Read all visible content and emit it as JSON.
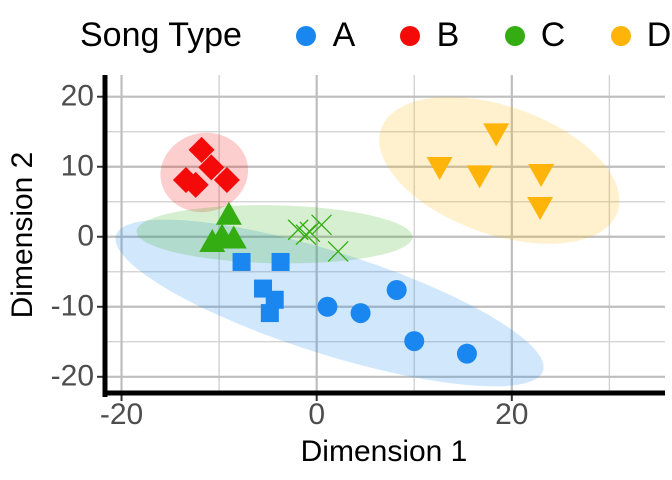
{
  "chart_data": {
    "type": "scatter",
    "x_label": "Dimension 1",
    "y_label": "Dimension 2",
    "legend_title": "Song Type",
    "legend_position": "top",
    "xlim": [
      -21.9,
      35.7
    ],
    "ylim": [
      -22.6,
      23.1
    ],
    "xticks": [
      -20,
      0,
      20
    ],
    "yticks": [
      -20,
      -10,
      0,
      10,
      20
    ],
    "x_minor_grid": [
      -10,
      10,
      30
    ],
    "y_minor_grid": [
      -15,
      -5,
      5,
      15
    ],
    "grid": true,
    "ellipses": true,
    "series": [
      {
        "name": "A",
        "color": "#1a87f0",
        "x": [
          -7.7,
          -3.7,
          -5.5,
          -4.3,
          -4.8,
          1.1,
          4.5,
          8.2,
          10.0,
          15.4
        ],
        "values": [
          -3.6,
          -3.6,
          -7.4,
          -9.0,
          -10.9,
          -10.0,
          -10.9,
          -7.6,
          -14.9,
          -16.7
        ],
        "shapes": [
          "square",
          "square",
          "square",
          "square",
          "square",
          "circle",
          "circle",
          "circle",
          "circle",
          "circle"
        ]
      },
      {
        "name": "B",
        "color": "#f50a0a",
        "x": [
          -11.8,
          -13.4,
          -12.4,
          -10.8,
          -9.2
        ],
        "values": [
          12.4,
          8.1,
          7.4,
          9.9,
          8.1
        ],
        "shapes": [
          "diamond",
          "diamond",
          "diamond",
          "diamond",
          "diamond"
        ]
      },
      {
        "name": "C",
        "color": "#33ad12",
        "x": [
          -9.0,
          -10.7,
          -8.5,
          -9.7,
          -1.9,
          -0.7,
          0.5,
          2.2,
          -1.1
        ],
        "values": [
          3.0,
          -0.9,
          -0.4,
          -0.1,
          1.0,
          0.7,
          1.7,
          -2.1,
          0.3
        ],
        "shapes": [
          "triangle",
          "triangle",
          "triangle",
          "triangle",
          "x",
          "x",
          "x",
          "x",
          "x"
        ]
      },
      {
        "name": "D",
        "color": "#ffb40a",
        "x": [
          18.4,
          12.6,
          16.7,
          23.0,
          22.9
        ],
        "values": [
          14.9,
          10.1,
          8.9,
          9.1,
          4.4
        ],
        "shapes": [
          "triangle-down",
          "triangle-down",
          "triangle-down",
          "triangle-down",
          "triangle-down"
        ]
      }
    ]
  }
}
